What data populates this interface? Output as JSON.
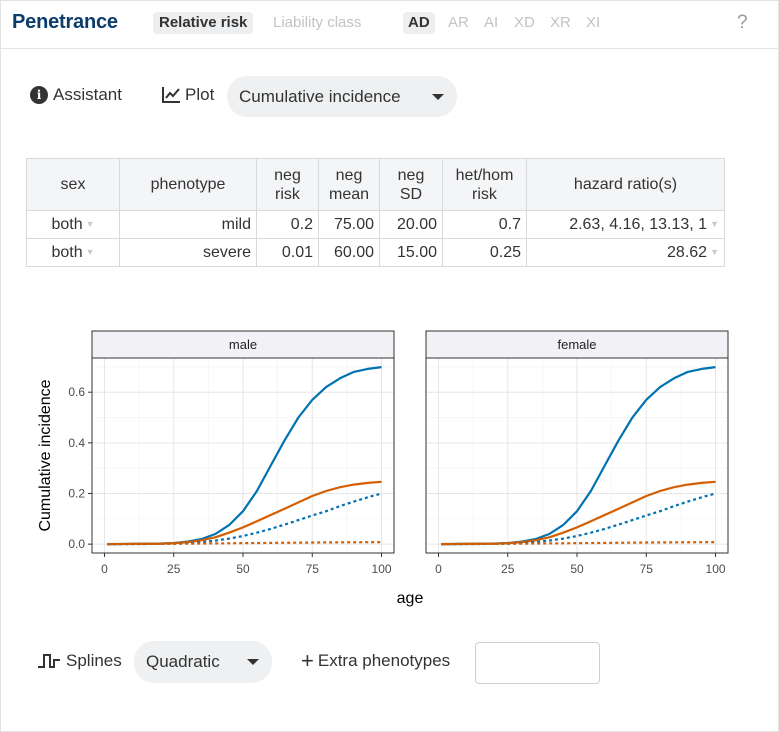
{
  "header": {
    "title": "Penetrance",
    "mode_tabs": [
      "Relative risk",
      "Liability class"
    ],
    "inheritance_tabs": [
      "AD",
      "AR",
      "AI",
      "XD",
      "XR",
      "XI"
    ],
    "help": "?"
  },
  "toolbar": {
    "assistant_label": "Assistant",
    "plot_label": "Plot",
    "plot_select_value": "Cumulative incidence"
  },
  "table": {
    "headers": [
      "sex",
      "phenotype",
      "neg risk",
      "neg mean",
      "neg SD",
      "het/hom risk",
      "hazard ratio(s)"
    ],
    "rows": [
      [
        "both",
        "mild",
        "0.2",
        "75.00",
        "20.00",
        "0.7",
        "2.63, 4.16, 13.13, 1"
      ],
      [
        "both",
        "severe",
        "0.01",
        "60.00",
        "15.00",
        "0.25",
        "28.62"
      ]
    ]
  },
  "chart_data": {
    "type": "line",
    "xlabel": "age",
    "ylabel": "Cumulative incidence",
    "facets": [
      "male",
      "female"
    ],
    "xlim": [
      0,
      100
    ],
    "ylim": [
      0,
      0.7
    ],
    "xticks": [
      "0",
      "25",
      "50",
      "75",
      "100"
    ],
    "yticks": [
      "0.0",
      "0.2",
      "0.4",
      "0.6"
    ],
    "grid": true,
    "colors": {
      "mild": "#0072b2",
      "severe": "#d55e00"
    },
    "series": [
      {
        "phenotype": "mild",
        "line": "solid",
        "x": [
          1,
          10,
          20,
          25,
          30,
          35,
          40,
          45,
          50,
          55,
          60,
          65,
          70,
          75,
          80,
          85,
          90,
          95,
          100
        ],
        "y": [
          0,
          0.001,
          0.002,
          0.004,
          0.01,
          0.02,
          0.04,
          0.075,
          0.13,
          0.21,
          0.31,
          0.41,
          0.5,
          0.57,
          0.62,
          0.655,
          0.68,
          0.692,
          0.699
        ]
      },
      {
        "phenotype": "severe",
        "line": "solid",
        "x": [
          1,
          10,
          20,
          25,
          30,
          35,
          40,
          45,
          50,
          55,
          60,
          65,
          70,
          75,
          80,
          85,
          90,
          95,
          100
        ],
        "y": [
          0,
          0.001,
          0.002,
          0.004,
          0.008,
          0.015,
          0.027,
          0.045,
          0.066,
          0.09,
          0.115,
          0.14,
          0.165,
          0.19,
          0.21,
          0.225,
          0.235,
          0.242,
          0.246
        ]
      },
      {
        "phenotype": "mild",
        "line": "dashed",
        "x": [
          1,
          10,
          20,
          25,
          30,
          35,
          40,
          45,
          50,
          55,
          60,
          65,
          70,
          75,
          80,
          85,
          90,
          95,
          100
        ],
        "y": [
          0,
          0,
          0.001,
          0.002,
          0.004,
          0.008,
          0.014,
          0.022,
          0.032,
          0.045,
          0.06,
          0.077,
          0.095,
          0.113,
          0.13,
          0.15,
          0.168,
          0.185,
          0.2
        ]
      },
      {
        "phenotype": "severe",
        "line": "dashed",
        "x": [
          1,
          20,
          40,
          60,
          80,
          100
        ],
        "y": [
          0,
          0.001,
          0.003,
          0.005,
          0.007,
          0.008
        ]
      }
    ]
  },
  "bottom": {
    "splines_label": "Splines",
    "splines_value": "Quadratic",
    "extra_label": "Extra phenotypes",
    "extra_value": ""
  }
}
